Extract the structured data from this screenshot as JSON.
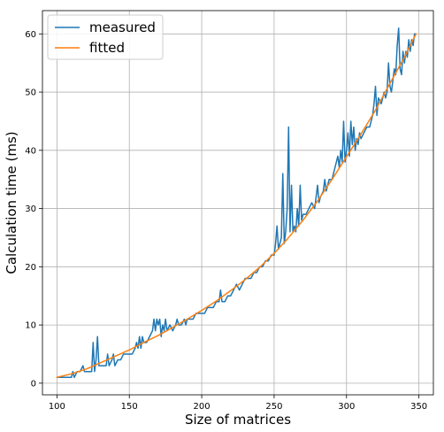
{
  "chart_data": {
    "type": "line",
    "title": "",
    "xlabel": "Size of matrices",
    "ylabel": "Calculation time (ms)",
    "xlim": [
      90,
      360
    ],
    "ylim": [
      -2,
      64
    ],
    "xticks": [
      100,
      150,
      200,
      250,
      300,
      350
    ],
    "yticks": [
      0,
      10,
      20,
      30,
      40,
      50,
      60
    ],
    "grid": true,
    "legend": {
      "placement": "top-left",
      "entries": [
        "measured",
        "fitted"
      ]
    },
    "colors": {
      "measured": "#1f77b4",
      "fitted": "#ff7f0e",
      "grid": "#b0b0b0",
      "axes": "#000000"
    },
    "series": [
      {
        "name": "measured",
        "points": [
          [
            100,
            1
          ],
          [
            102,
            1
          ],
          [
            104,
            1
          ],
          [
            106,
            1
          ],
          [
            108,
            1
          ],
          [
            110,
            1
          ],
          [
            111,
            2
          ],
          [
            112,
            1
          ],
          [
            114,
            2
          ],
          [
            116,
            2
          ],
          [
            118,
            3
          ],
          [
            119,
            2
          ],
          [
            120,
            2
          ],
          [
            122,
            2
          ],
          [
            124,
            2
          ],
          [
            125,
            7
          ],
          [
            126,
            2
          ],
          [
            127,
            4
          ],
          [
            128,
            8
          ],
          [
            129,
            3
          ],
          [
            130,
            3
          ],
          [
            132,
            3
          ],
          [
            134,
            3
          ],
          [
            135,
            5
          ],
          [
            136,
            3
          ],
          [
            138,
            4
          ],
          [
            139,
            5
          ],
          [
            140,
            3
          ],
          [
            142,
            4
          ],
          [
            144,
            4
          ],
          [
            146,
            5
          ],
          [
            148,
            5
          ],
          [
            150,
            5
          ],
          [
            152,
            5
          ],
          [
            154,
            6
          ],
          [
            155,
            7
          ],
          [
            156,
            6
          ],
          [
            157,
            8
          ],
          [
            158,
            6
          ],
          [
            159,
            8
          ],
          [
            160,
            7
          ],
          [
            162,
            7
          ],
          [
            164,
            8
          ],
          [
            166,
            9
          ],
          [
            167,
            11
          ],
          [
            168,
            9
          ],
          [
            169,
            11
          ],
          [
            170,
            10
          ],
          [
            171,
            11
          ],
          [
            172,
            8
          ],
          [
            173,
            10
          ],
          [
            174,
            9
          ],
          [
            175,
            11
          ],
          [
            176,
            9
          ],
          [
            178,
            10
          ],
          [
            180,
            9
          ],
          [
            182,
            10
          ],
          [
            183,
            11
          ],
          [
            184,
            10
          ],
          [
            186,
            10
          ],
          [
            188,
            11
          ],
          [
            189,
            10
          ],
          [
            190,
            11
          ],
          [
            192,
            11
          ],
          [
            194,
            11
          ],
          [
            196,
            12
          ],
          [
            198,
            12
          ],
          [
            200,
            12
          ],
          [
            202,
            12
          ],
          [
            204,
            13
          ],
          [
            206,
            13
          ],
          [
            208,
            13
          ],
          [
            210,
            14
          ],
          [
            212,
            14
          ],
          [
            213,
            16
          ],
          [
            214,
            14
          ],
          [
            216,
            14
          ],
          [
            218,
            15
          ],
          [
            220,
            15
          ],
          [
            222,
            16
          ],
          [
            224,
            17
          ],
          [
            226,
            16
          ],
          [
            228,
            17
          ],
          [
            230,
            18
          ],
          [
            232,
            18
          ],
          [
            234,
            18
          ],
          [
            236,
            19
          ],
          [
            238,
            19
          ],
          [
            240,
            20
          ],
          [
            242,
            20
          ],
          [
            244,
            21
          ],
          [
            246,
            21
          ],
          [
            248,
            22
          ],
          [
            250,
            22
          ],
          [
            251,
            24
          ],
          [
            252,
            27
          ],
          [
            253,
            23
          ],
          [
            254,
            24
          ],
          [
            255,
            25
          ],
          [
            256,
            36
          ],
          [
            257,
            24
          ],
          [
            258,
            26
          ],
          [
            259,
            30
          ],
          [
            260,
            44
          ],
          [
            261,
            26
          ],
          [
            262,
            34
          ],
          [
            263,
            26
          ],
          [
            264,
            27
          ],
          [
            265,
            26
          ],
          [
            266,
            30
          ],
          [
            267,
            27
          ],
          [
            268,
            34
          ],
          [
            269,
            28
          ],
          [
            270,
            29
          ],
          [
            272,
            29
          ],
          [
            274,
            30
          ],
          [
            276,
            31
          ],
          [
            278,
            30
          ],
          [
            280,
            34
          ],
          [
            281,
            31
          ],
          [
            282,
            32
          ],
          [
            284,
            33
          ],
          [
            285,
            35
          ],
          [
            286,
            33
          ],
          [
            288,
            35
          ],
          [
            290,
            35
          ],
          [
            292,
            37
          ],
          [
            294,
            39
          ],
          [
            295,
            37
          ],
          [
            296,
            40
          ],
          [
            297,
            38
          ],
          [
            298,
            45
          ],
          [
            299,
            38
          ],
          [
            300,
            40
          ],
          [
            301,
            43
          ],
          [
            302,
            39
          ],
          [
            303,
            45
          ],
          [
            304,
            41
          ],
          [
            305,
            44
          ],
          [
            306,
            40
          ],
          [
            307,
            42
          ],
          [
            308,
            41
          ],
          [
            309,
            43
          ],
          [
            310,
            42
          ],
          [
            312,
            43
          ],
          [
            314,
            44
          ],
          [
            316,
            44
          ],
          [
            318,
            46
          ],
          [
            319,
            48
          ],
          [
            320,
            51
          ],
          [
            321,
            46
          ],
          [
            322,
            49
          ],
          [
            324,
            48
          ],
          [
            326,
            50
          ],
          [
            327,
            49
          ],
          [
            328,
            50
          ],
          [
            329,
            55
          ],
          [
            330,
            51
          ],
          [
            331,
            50
          ],
          [
            332,
            52
          ],
          [
            333,
            54
          ],
          [
            334,
            53
          ],
          [
            335,
            58
          ],
          [
            336,
            61
          ],
          [
            337,
            54
          ],
          [
            338,
            53
          ],
          [
            339,
            57
          ],
          [
            340,
            55
          ],
          [
            341,
            57
          ],
          [
            342,
            56
          ],
          [
            343,
            59
          ],
          [
            344,
            57
          ],
          [
            345,
            59
          ],
          [
            346,
            58
          ],
          [
            347,
            60
          ],
          [
            348,
            60
          ]
        ]
      },
      {
        "name": "fitted",
        "points": [
          [
            100,
            1.0
          ],
          [
            110,
            1.6
          ],
          [
            120,
            2.4
          ],
          [
            130,
            3.5
          ],
          [
            140,
            4.6
          ],
          [
            150,
            5.7
          ],
          [
            160,
            7.0
          ],
          [
            170,
            8.2
          ],
          [
            180,
            9.6
          ],
          [
            190,
            11.0
          ],
          [
            200,
            12.5
          ],
          [
            210,
            14.1
          ],
          [
            220,
            15.9
          ],
          [
            230,
            17.8
          ],
          [
            240,
            19.9
          ],
          [
            250,
            22.3
          ],
          [
            260,
            25.0
          ],
          [
            270,
            28.0
          ],
          [
            280,
            31.3
          ],
          [
            290,
            35.0
          ],
          [
            300,
            38.9
          ],
          [
            310,
            42.8
          ],
          [
            320,
            46.9
          ],
          [
            330,
            51.5
          ],
          [
            340,
            56.0
          ],
          [
            348,
            60.0
          ]
        ]
      }
    ]
  }
}
